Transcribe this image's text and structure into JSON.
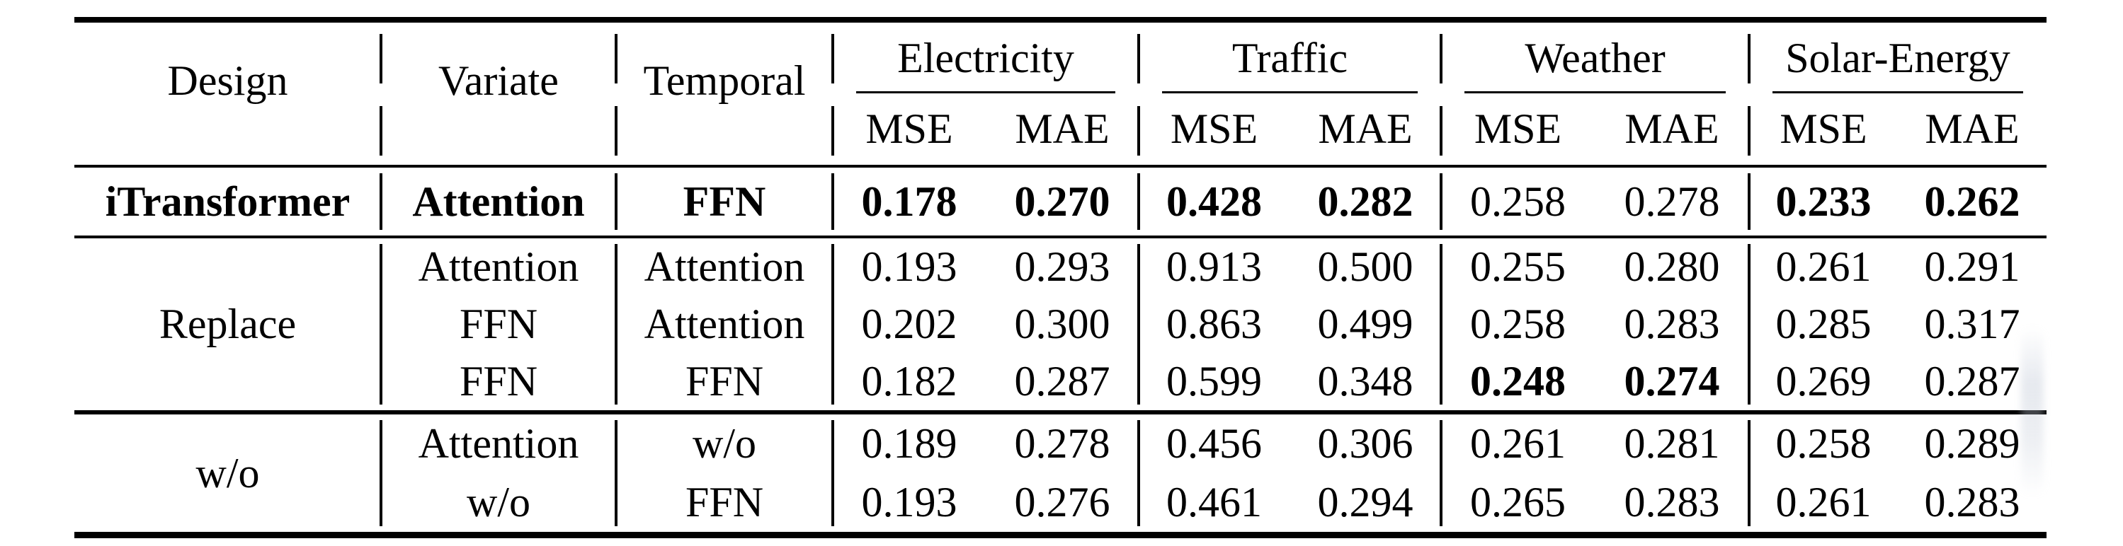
{
  "table": {
    "headers": {
      "design": "Design",
      "variate": "Variate",
      "temporal": "Temporal"
    },
    "datasets": [
      {
        "label": "Electricity"
      },
      {
        "label": "Traffic"
      },
      {
        "label": "Weather"
      },
      {
        "label": "Solar-Energy"
      }
    ],
    "metrics": {
      "mse": "MSE",
      "mae": "MAE"
    },
    "rows": {
      "itransformer": {
        "design": "iTransformer",
        "variate": "Attention",
        "temporal": "FFN",
        "values": [
          "0.178",
          "0.270",
          "0.428",
          "0.282",
          "0.258",
          "0.278",
          "0.233",
          "0.262"
        ]
      },
      "replace": {
        "design": "Replace",
        "rows": [
          {
            "variate": "Attention",
            "temporal": "Attention",
            "values": [
              "0.193",
              "0.293",
              "0.913",
              "0.500",
              "0.255",
              "0.280",
              "0.261",
              "0.291"
            ]
          },
          {
            "variate": "FFN",
            "temporal": "Attention",
            "values": [
              "0.202",
              "0.300",
              "0.863",
              "0.499",
              "0.258",
              "0.283",
              "0.285",
              "0.317"
            ]
          },
          {
            "variate": "FFN",
            "temporal": "FFN",
            "values": [
              "0.182",
              "0.287",
              "0.599",
              "0.348",
              "0.248",
              "0.274",
              "0.269",
              "0.287"
            ]
          }
        ]
      },
      "without": {
        "design": "w/o",
        "rows": [
          {
            "variate": "Attention",
            "temporal": "w/o",
            "values": [
              "0.189",
              "0.278",
              "0.456",
              "0.306",
              "0.261",
              "0.281",
              "0.258",
              "0.289"
            ]
          },
          {
            "variate": "w/o",
            "temporal": "FFN",
            "values": [
              "0.193",
              "0.276",
              "0.461",
              "0.294",
              "0.265",
              "0.283",
              "0.261",
              "0.283"
            ]
          }
        ]
      }
    },
    "colors": {
      "ink": "#000000",
      "paper": "#ffffff"
    }
  }
}
